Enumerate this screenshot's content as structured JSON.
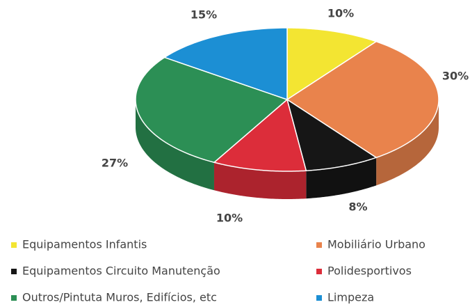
{
  "chart_data": {
    "type": "pie3d",
    "categories": [
      "Equipamentos Infantis",
      "Mobiliário Urbano",
      "Equipamentos Circuito Manutenção",
      "Polidesportivos",
      "Outros/Pintuta Muros, Edifícios, etc",
      "Limpeza"
    ],
    "values": [
      10,
      30,
      8,
      10,
      27,
      15
    ],
    "value_labels": [
      "10%",
      "30%",
      "8%",
      "10%",
      "27%",
      "15%"
    ],
    "colors": [
      "#f3e532",
      "#e9834c",
      "#161616",
      "#dc2d3a",
      "#2c8f55",
      "#1c8fd4"
    ],
    "legend": "bottom"
  }
}
